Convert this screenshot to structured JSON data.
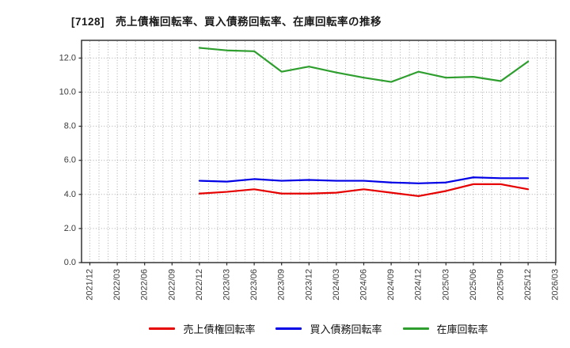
{
  "chart_data": {
    "type": "line",
    "title": "[7128]　売上債権回転率、買入債務回転率、在庫回転率の推移",
    "x_tick_labels": [
      "2021/12",
      "2022/03",
      "2022/06",
      "2022/09",
      "2022/12",
      "2023/03",
      "2023/06",
      "2023/09",
      "2023/12",
      "2024/03",
      "2024/06",
      "2024/09",
      "2024/12",
      "2025/03",
      "2025/06",
      "2025/09",
      "2025/12",
      "2026/03"
    ],
    "categories": [
      "2022/12",
      "2023/03",
      "2023/06",
      "2023/09",
      "2023/12",
      "2024/03",
      "2024/06",
      "2024/09",
      "2024/12",
      "2025/03",
      "2025/06",
      "2025/09",
      "2025/12"
    ],
    "series": [
      {
        "name": "売上債権回転率",
        "color": "#e60000",
        "values": [
          4.05,
          4.15,
          4.3,
          4.05,
          4.05,
          4.1,
          4.3,
          4.1,
          3.9,
          4.2,
          4.6,
          4.6,
          4.3
        ]
      },
      {
        "name": "買入債務回転率",
        "color": "#0000e6",
        "values": [
          4.8,
          4.75,
          4.9,
          4.8,
          4.85,
          4.8,
          4.8,
          4.7,
          4.65,
          4.7,
          5.0,
          4.95,
          4.95
        ]
      },
      {
        "name": "在庫回転率",
        "color": "#2e9e2e",
        "values": [
          12.6,
          12.45,
          12.4,
          11.2,
          11.5,
          11.15,
          10.85,
          10.6,
          11.2,
          10.85,
          10.9,
          10.65,
          11.8
        ]
      }
    ],
    "ylim": [
      0,
      13.04
    ],
    "ytick_values": [
      0,
      2,
      4,
      6,
      8,
      10,
      12
    ],
    "ytick_labels": [
      "0.0",
      "2.0",
      "4.0",
      "6.0",
      "8.0",
      "10.0",
      "12.0"
    ],
    "grid": "dotted-gray-minor-monthly",
    "legend_position": "bottom",
    "axis_color": "#262626",
    "grid_color": "#aaaaaa",
    "tick_label_color": "#3a3a3a"
  }
}
